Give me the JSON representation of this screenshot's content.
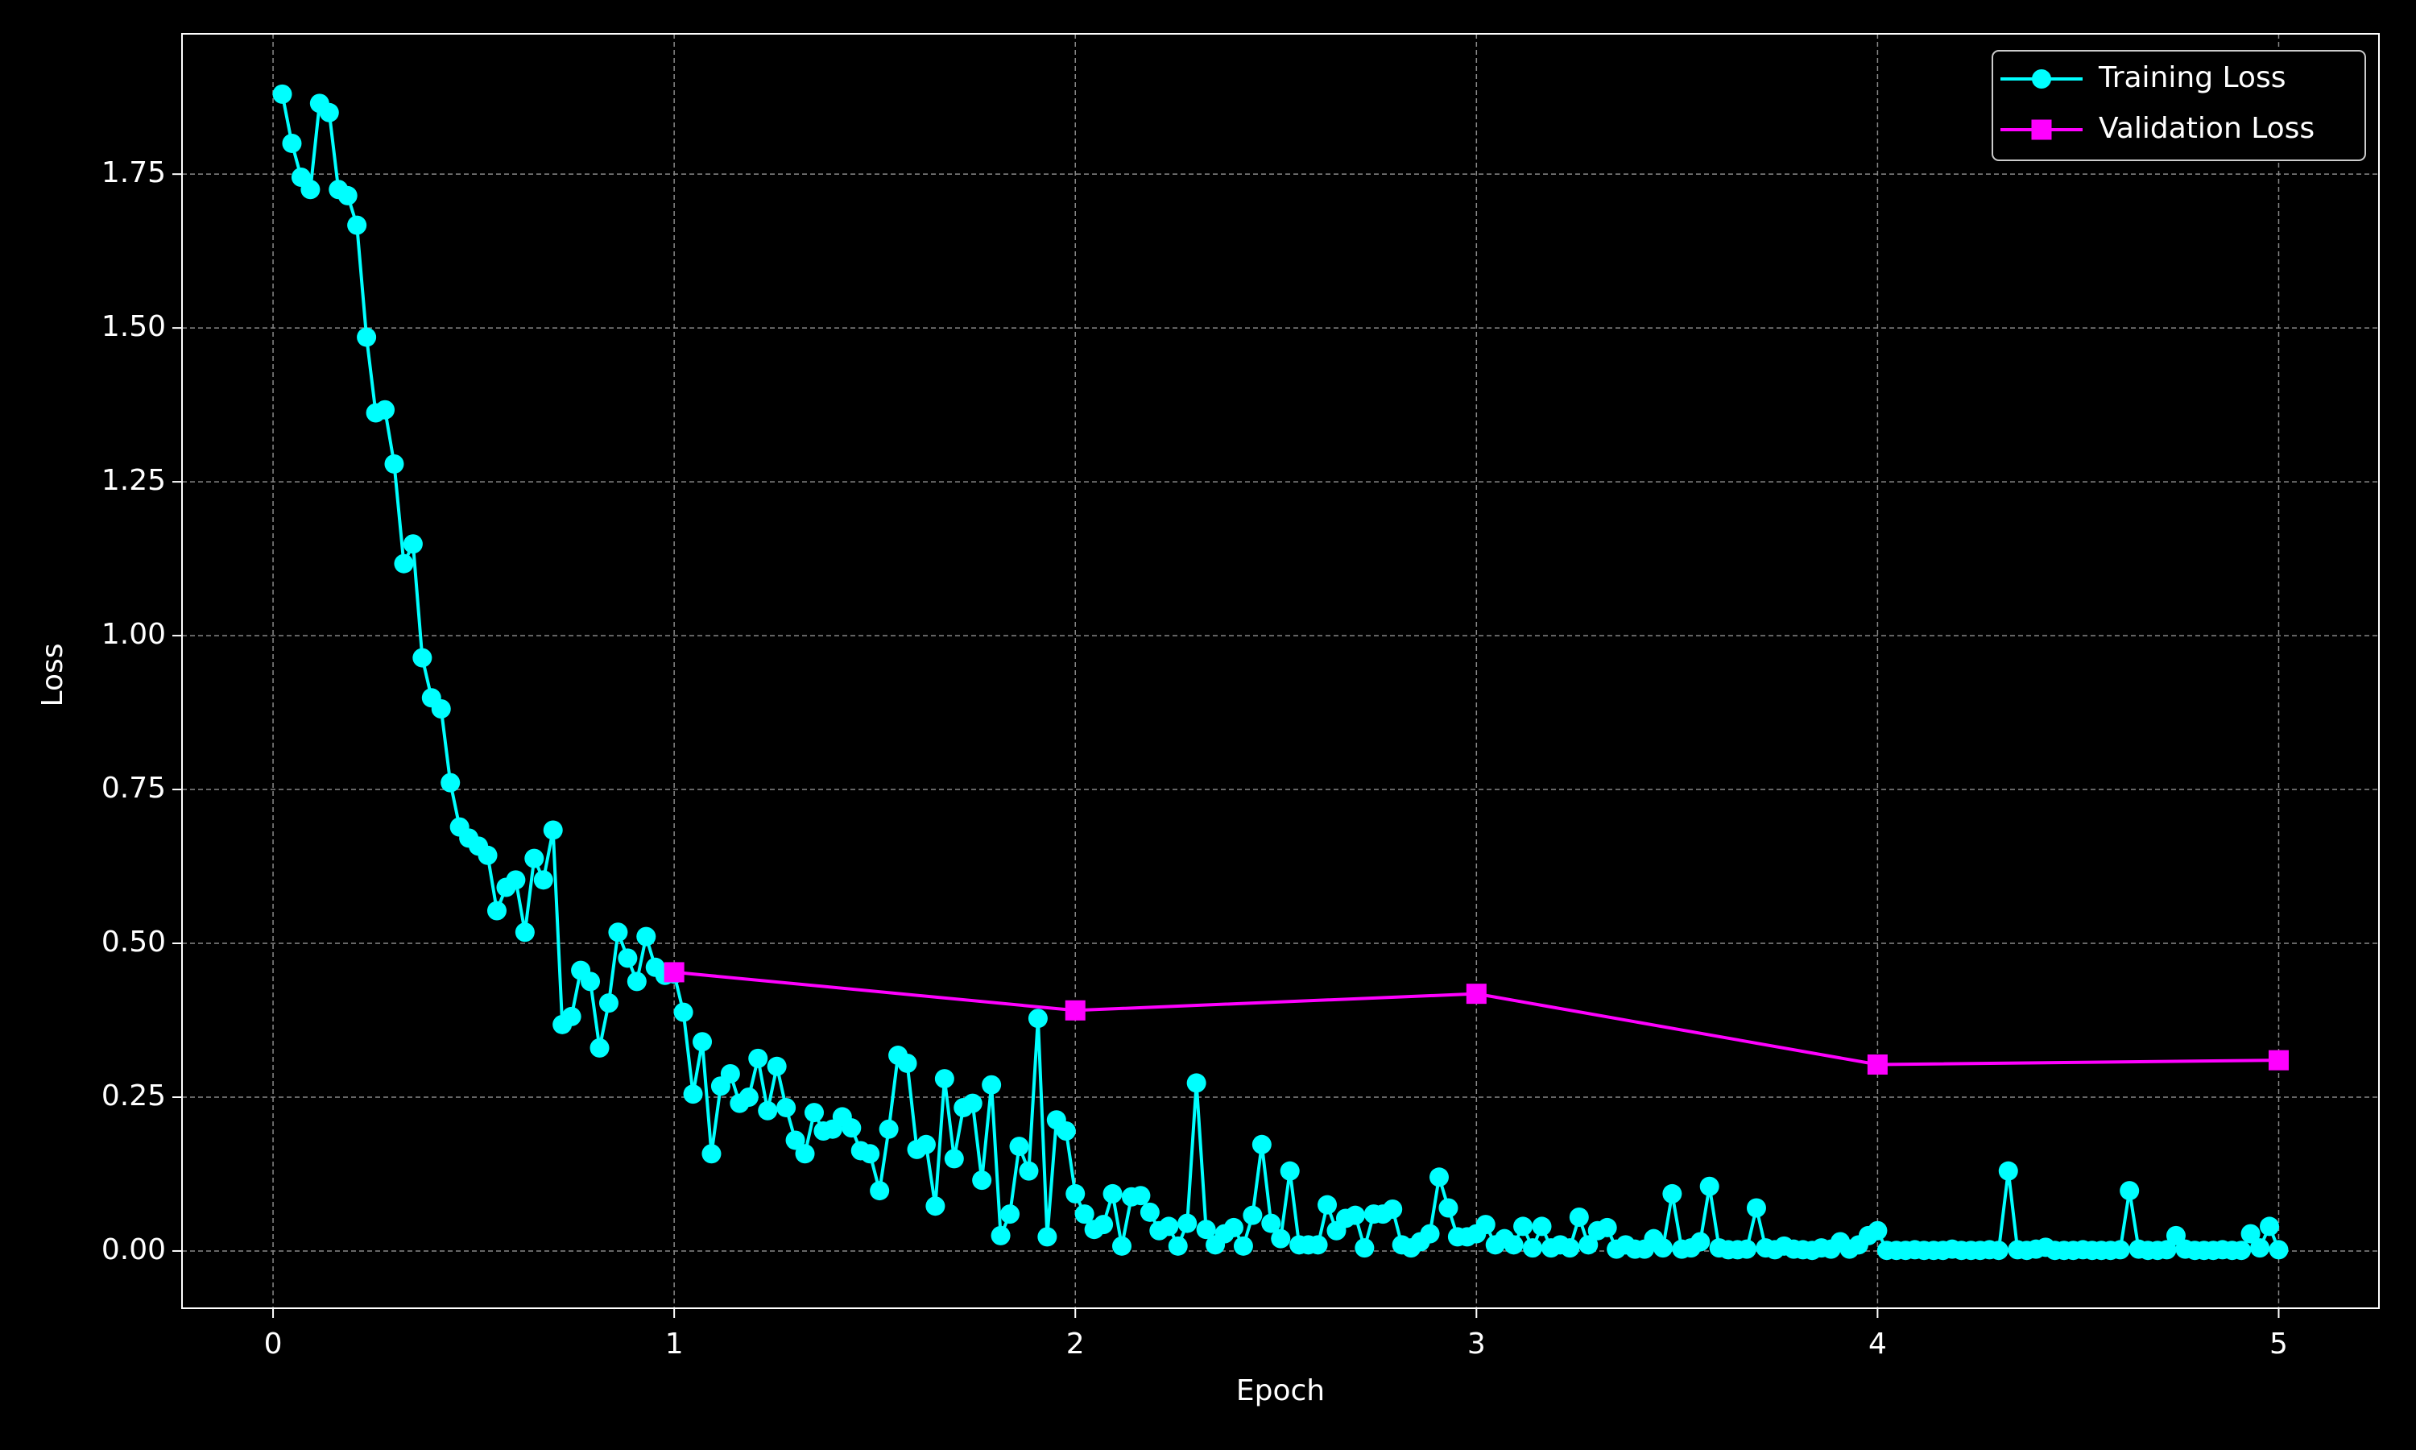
{
  "chart_data": {
    "type": "line",
    "xlabel": "Epoch",
    "ylabel": "Loss",
    "xlim": [
      -0.227,
      5.25
    ],
    "ylim": [
      -0.093,
      1.978
    ],
    "xticks": [
      0,
      1,
      2,
      3,
      4,
      5
    ],
    "yticks": [
      {
        "value": 0,
        "label": "0.00"
      },
      {
        "value": 0.25,
        "label": "0.25"
      },
      {
        "value": 0.5,
        "label": "0.50"
      },
      {
        "value": 0.75,
        "label": "0.75"
      },
      {
        "value": 1,
        "label": "1.00"
      },
      {
        "value": 1.25,
        "label": "1.25"
      },
      {
        "value": 1.5,
        "label": "1.50"
      },
      {
        "value": 1.75,
        "label": "1.75"
      }
    ],
    "grid": true,
    "legend": "upper right",
    "series": [
      {
        "name": "Training Loss",
        "color": "#00ffff",
        "marker": "circle",
        "x": [
          0.023,
          0.047,
          0.07,
          0.093,
          0.116,
          0.14,
          0.163,
          0.186,
          0.209,
          0.233,
          0.256,
          0.279,
          0.302,
          0.326,
          0.349,
          0.372,
          0.395,
          0.419,
          0.442,
          0.465,
          0.488,
          0.512,
          0.535,
          0.558,
          0.581,
          0.605,
          0.628,
          0.651,
          0.674,
          0.698,
          0.721,
          0.744,
          0.767,
          0.791,
          0.814,
          0.837,
          0.86,
          0.884,
          0.907,
          0.93,
          0.953,
          0.977,
          1,
          1.023,
          1.047,
          1.07,
          1.093,
          1.116,
          1.14,
          1.163,
          1.186,
          1.209,
          1.233,
          1.256,
          1.279,
          1.302,
          1.326,
          1.349,
          1.372,
          1.395,
          1.419,
          1.442,
          1.465,
          1.488,
          1.512,
          1.535,
          1.558,
          1.581,
          1.605,
          1.628,
          1.651,
          1.674,
          1.698,
          1.721,
          1.744,
          1.767,
          1.791,
          1.814,
          1.837,
          1.86,
          1.884,
          1.907,
          1.93,
          1.953,
          1.977,
          2,
          2.023,
          2.047,
          2.07,
          2.093,
          2.116,
          2.14,
          2.163,
          2.186,
          2.209,
          2.233,
          2.256,
          2.279,
          2.302,
          2.326,
          2.349,
          2.372,
          2.395,
          2.419,
          2.442,
          2.465,
          2.488,
          2.512,
          2.535,
          2.558,
          2.581,
          2.605,
          2.628,
          2.651,
          2.674,
          2.698,
          2.721,
          2.744,
          2.767,
          2.791,
          2.814,
          2.837,
          2.86,
          2.884,
          2.907,
          2.93,
          2.953,
          2.977,
          3,
          3.023,
          3.047,
          3.07,
          3.093,
          3.116,
          3.14,
          3.163,
          3.186,
          3.209,
          3.233,
          3.256,
          3.279,
          3.302,
          3.326,
          3.349,
          3.372,
          3.395,
          3.419,
          3.442,
          3.465,
          3.488,
          3.512,
          3.535,
          3.558,
          3.581,
          3.605,
          3.628,
          3.651,
          3.674,
          3.698,
          3.721,
          3.744,
          3.767,
          3.791,
          3.814,
          3.837,
          3.86,
          3.884,
          3.907,
          3.93,
          3.953,
          3.977,
          4,
          4.023,
          4.047,
          4.07,
          4.093,
          4.116,
          4.14,
          4.163,
          4.186,
          4.209,
          4.233,
          4.256,
          4.279,
          4.302,
          4.326,
          4.349,
          4.372,
          4.395,
          4.419,
          4.442,
          4.465,
          4.488,
          4.512,
          4.535,
          4.558,
          4.581,
          4.605,
          4.628,
          4.651,
          4.674,
          4.698,
          4.721,
          4.744,
          4.767,
          4.791,
          4.814,
          4.837,
          4.86,
          4.884,
          4.907,
          4.93,
          4.953,
          4.977,
          5
        ],
        "values": [
          1.88,
          1.8,
          1.745,
          1.725,
          1.865,
          1.85,
          1.725,
          1.715,
          1.667,
          1.485,
          1.362,
          1.367,
          1.279,
          1.117,
          1.149,
          0.964,
          0.899,
          0.881,
          0.761,
          0.689,
          0.671,
          0.658,
          0.643,
          0.553,
          0.591,
          0.603,
          0.518,
          0.638,
          0.603,
          0.684,
          0.368,
          0.381,
          0.456,
          0.438,
          0.33,
          0.403,
          0.518,
          0.476,
          0.438,
          0.511,
          0.461,
          0.448,
          0.45,
          0.388,
          0.255,
          0.34,
          0.158,
          0.268,
          0.288,
          0.24,
          0.25,
          0.313,
          0.228,
          0.3,
          0.233,
          0.18,
          0.158,
          0.225,
          0.195,
          0.198,
          0.218,
          0.2,
          0.163,
          0.158,
          0.098,
          0.198,
          0.318,
          0.305,
          0.165,
          0.173,
          0.073,
          0.28,
          0.15,
          0.233,
          0.24,
          0.115,
          0.27,
          0.025,
          0.06,
          0.17,
          0.13,
          0.378,
          0.023,
          0.213,
          0.195,
          0.093,
          0.06,
          0.035,
          0.043,
          0.093,
          0.008,
          0.088,
          0.09,
          0.063,
          0.033,
          0.04,
          0.008,
          0.045,
          0.273,
          0.035,
          0.01,
          0.028,
          0.038,
          0.008,
          0.058,
          0.173,
          0.045,
          0.02,
          0.13,
          0.01,
          0.01,
          0.01,
          0.075,
          0.033,
          0.053,
          0.058,
          0.005,
          0.06,
          0.06,
          0.068,
          0.01,
          0.005,
          0.015,
          0.028,
          0.12,
          0.07,
          0.023,
          0.023,
          0.028,
          0.043,
          0.01,
          0.02,
          0.01,
          0.04,
          0.005,
          0.04,
          0.005,
          0.01,
          0.005,
          0.055,
          0.01,
          0.033,
          0.038,
          0.003,
          0.01,
          0.003,
          0.003,
          0.02,
          0.005,
          0.093,
          0.003,
          0.005,
          0.015,
          0.105,
          0.005,
          0.002,
          0.002,
          0.003,
          0.07,
          0.005,
          0.002,
          0.008,
          0.003,
          0.002,
          0.001,
          0.005,
          0.003,
          0.015,
          0.003,
          0.01,
          0.025,
          0.033,
          0.001,
          0.001,
          0.001,
          0.002,
          0.001,
          0.001,
          0.001,
          0.003,
          0.001,
          0.001,
          0.001,
          0.002,
          0.001,
          0.13,
          0.002,
          0.001,
          0.003,
          0.006,
          0.001,
          0.001,
          0.001,
          0.002,
          0.001,
          0.001,
          0.001,
          0.002,
          0.098,
          0.003,
          0.001,
          0.001,
          0.002,
          0.025,
          0.003,
          0.001,
          0.001,
          0.001,
          0.002,
          0.001,
          0.001,
          0.028,
          0.005,
          0.04,
          0.002
        ]
      },
      {
        "name": "Validation Loss",
        "color": "#ff00ff",
        "marker": "square",
        "x": [
          1,
          2,
          3,
          4,
          5
        ],
        "values": [
          0.453,
          0.391,
          0.418,
          0.303,
          0.31
        ]
      }
    ]
  }
}
